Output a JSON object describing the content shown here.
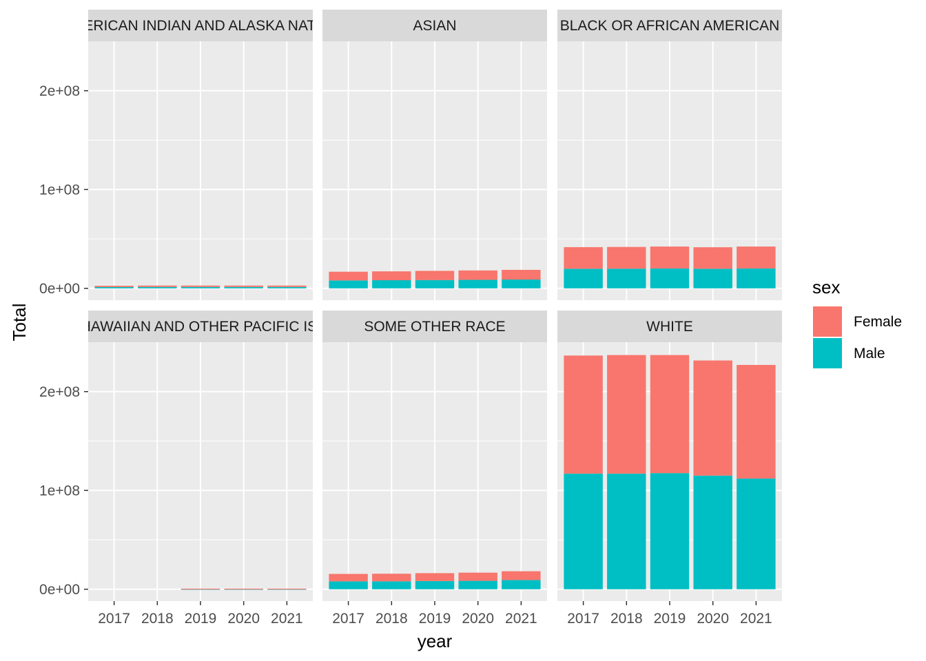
{
  "chart_data": {
    "type": "bar",
    "stacked": true,
    "facet_layout": "2 rows x 3 columns, shared axes",
    "x": [
      "2017",
      "2018",
      "2019",
      "2020",
      "2021"
    ],
    "xlabel": "year",
    "ylabel": "Total",
    "ylim": [
      -12000000,
      250000000
    ],
    "yticks": [
      0,
      100000000,
      200000000
    ],
    "ytick_labels": [
      "0e+00",
      "1e+08",
      "2e+08"
    ],
    "legend": {
      "title": "sex",
      "entries": [
        "Female",
        "Male"
      ],
      "position": "right"
    },
    "colors": {
      "Female": "#F8766D",
      "Male": "#00BFC4"
    },
    "background": {
      "panel": "#EBEBEB",
      "grid": "#FFFFFF",
      "strip": "#D9D9D9"
    },
    "grid": true,
    "facets": [
      {
        "label": "AMERICAN INDIAN AND ALASKA NATIVE",
        "series": [
          {
            "name": "Male",
            "values": [
              1300000,
              1400000,
              1400000,
              1400000,
              1400000
            ]
          },
          {
            "name": "Female",
            "values": [
              1300000,
              1400000,
              1400000,
              1400000,
              1400000
            ]
          }
        ]
      },
      {
        "label": "ASIAN",
        "series": [
          {
            "name": "Male",
            "values": [
              8000000,
              8200000,
              8400000,
              8600000,
              8900000
            ]
          },
          {
            "name": "Female",
            "values": [
              8800000,
              9000000,
              9300000,
              9500000,
              9800000
            ]
          }
        ]
      },
      {
        "label": "BLACK OR AFRICAN AMERICAN",
        "series": [
          {
            "name": "Male",
            "values": [
              19800000,
              19900000,
              20100000,
              19800000,
              20100000
            ]
          },
          {
            "name": "Female",
            "values": [
              21900000,
              22000000,
              22200000,
              21800000,
              22200000
            ]
          }
        ]
      },
      {
        "label": "NATIVE HAWAIIAN AND OTHER PACIFIC ISLANDER",
        "series": [
          {
            "name": "Male",
            "values": [
              0,
              0,
              300000,
              300000,
              300000
            ]
          },
          {
            "name": "Female",
            "values": [
              0,
              0,
              300000,
              300000,
              300000
            ]
          }
        ]
      },
      {
        "label": "SOME OTHER RACE",
        "series": [
          {
            "name": "Male",
            "values": [
              8000000,
              8000000,
              8300000,
              8500000,
              9300000
            ]
          },
          {
            "name": "Female",
            "values": [
              7500000,
              7700000,
              8000000,
              8300000,
              8900000
            ]
          }
        ]
      },
      {
        "label": "WHITE",
        "series": [
          {
            "name": "Male",
            "values": [
              117000000,
              117000000,
              117500000,
              115000000,
              112000000
            ]
          },
          {
            "name": "Female",
            "values": [
              119500000,
              120000000,
              119500000,
              116500000,
              115000000
            ]
          }
        ]
      }
    ]
  }
}
